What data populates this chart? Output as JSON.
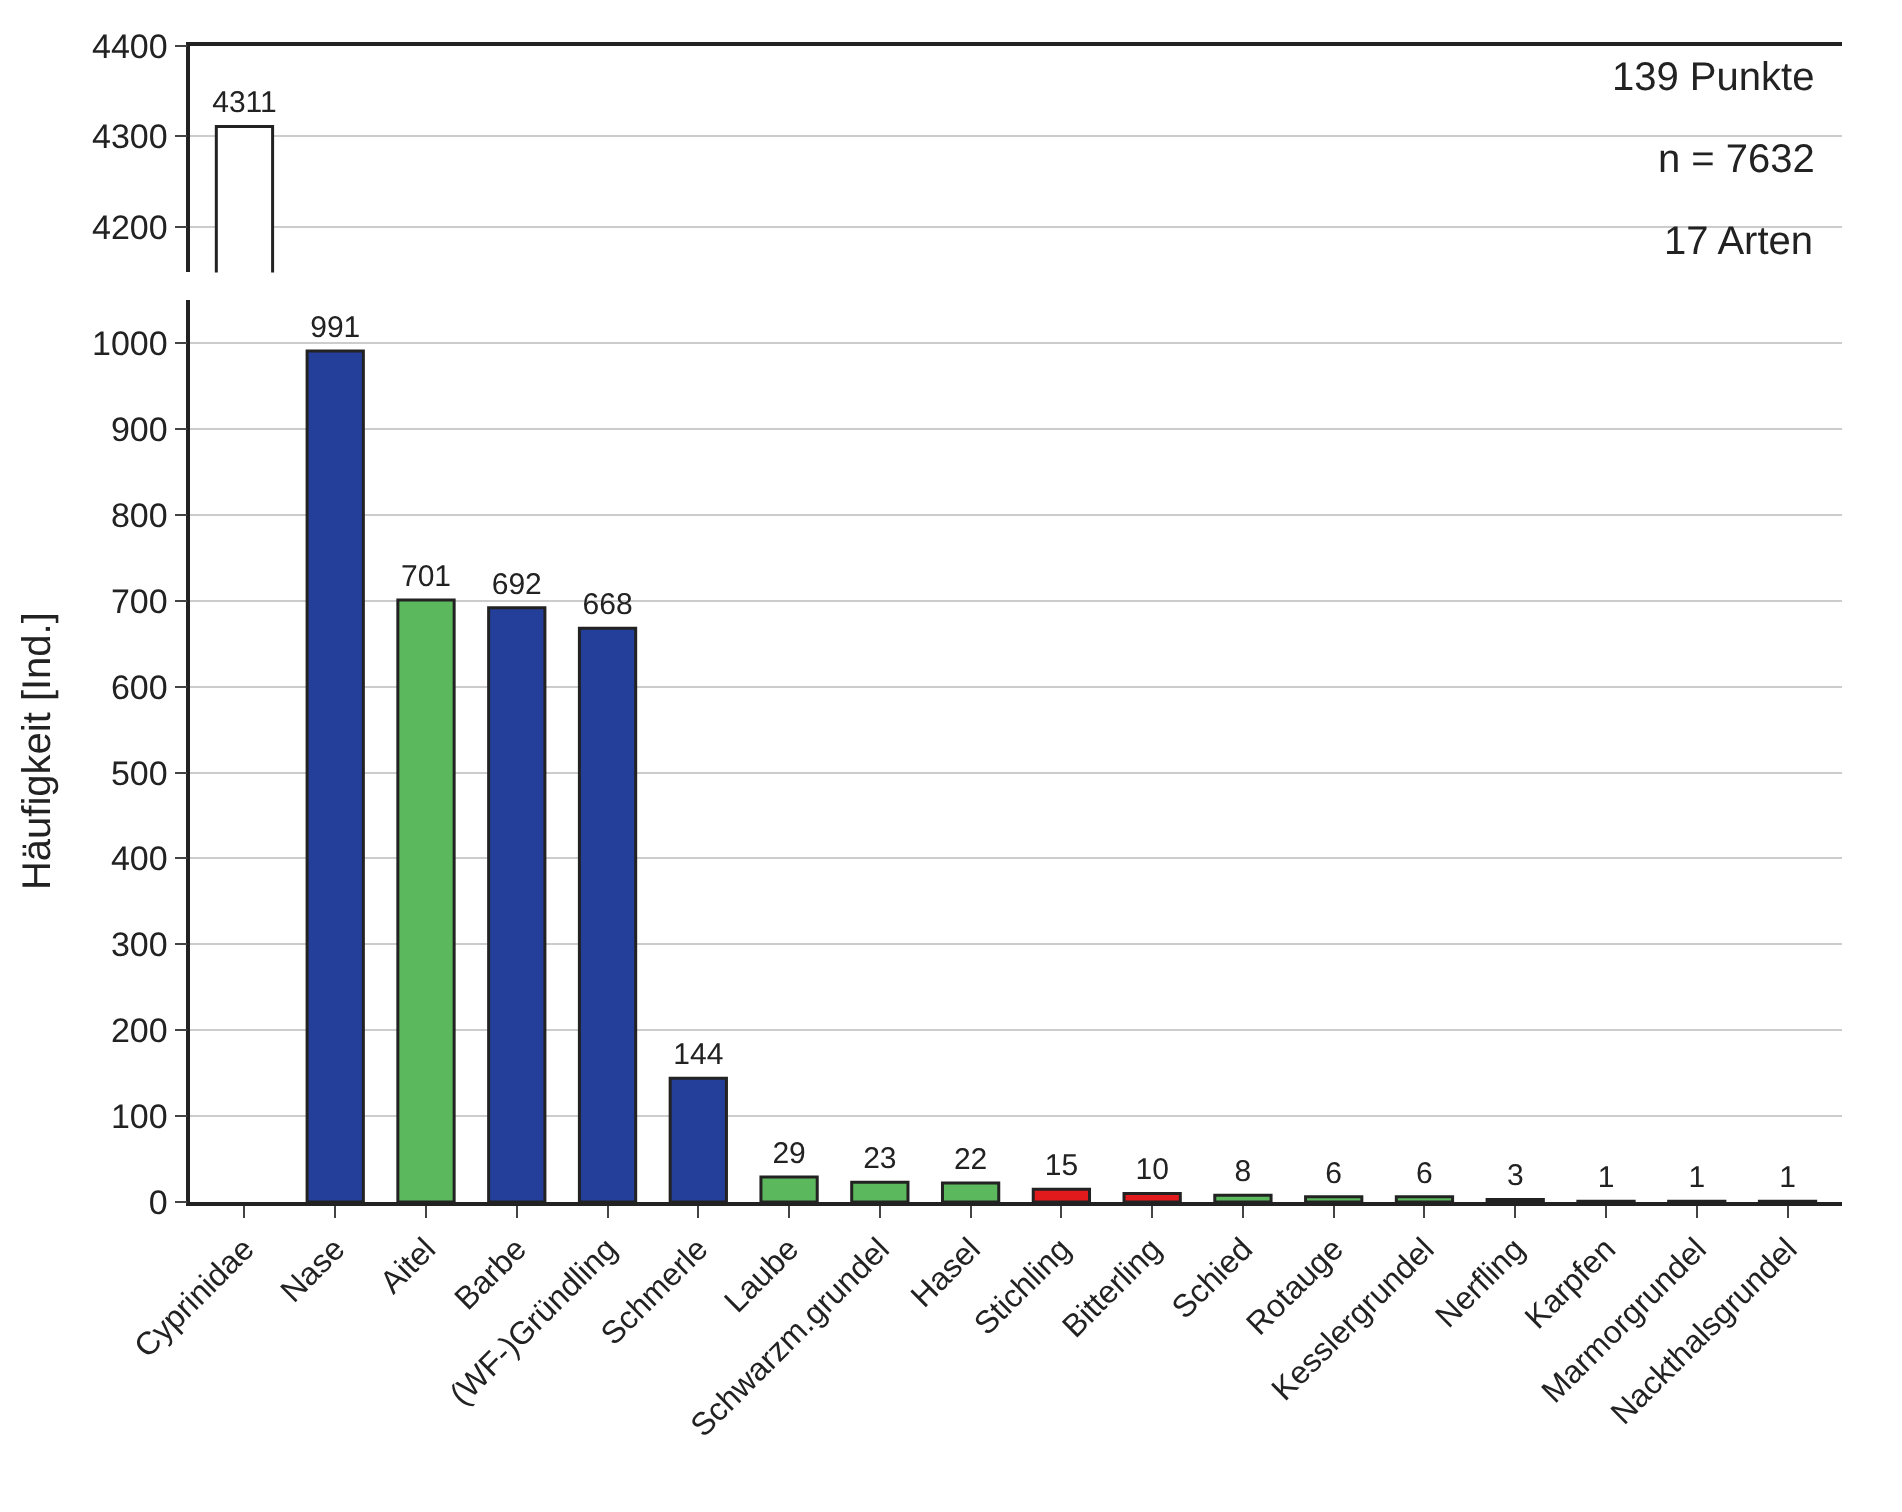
{
  "chart_data": [
    {
      "type": "bar",
      "categories": [
        null,
        null,
        null,
        null,
        null,
        null,
        null,
        null,
        null,
        null,
        null,
        null,
        null,
        null,
        null,
        null,
        null,
        null
      ],
      "values": [
        4311,
        null,
        null,
        null,
        null,
        null,
        null,
        null,
        null,
        null,
        null,
        null,
        null,
        null,
        null,
        null,
        null,
        null
      ],
      "value_labels": [
        "4311",
        null,
        null,
        null,
        null,
        null,
        null,
        null,
        null,
        null,
        null,
        null,
        null,
        null,
        null,
        null,
        null,
        null
      ],
      "colors": [
        "#ffffff",
        "#243f99",
        "#5cb85c",
        "#243f99",
        "#243f99",
        "#243f99",
        "#5cb85c",
        "#5cb85c",
        "#5cb85c",
        "#e31a1c",
        "#e31a1c",
        "#5cb85c",
        "#5cb85c",
        "#5cb85c",
        "#5cb85c",
        "#5cb85c",
        "#5cb85c",
        "#5cb85c"
      ],
      "ylim": [
        4150,
        4400
      ],
      "yticks": [
        4200,
        4300,
        4400
      ],
      "grid": "y",
      "legend": false,
      "tick_labels": "y",
      "annotations": [
        "139 Punkte",
        "n = 7632",
        "17 Arten"
      ]
    },
    {
      "type": "bar",
      "categories": [
        "Cyprinidae",
        "Nase",
        "Aitel",
        "Barbe",
        "(WF-)Gründling",
        "Schmerle",
        "Laube",
        "Schwarzm.grundel",
        "Hasel",
        "Stichling",
        "Bitterling",
        "Schied",
        "Rotauge",
        "Kesslergrundel",
        "Nerfling",
        "Karpfen",
        "Marmorgrundel",
        "Nackthalsgrundel"
      ],
      "values": [
        null,
        991,
        701,
        692,
        668,
        144,
        29,
        23,
        22,
        15,
        10,
        8,
        6,
        6,
        3,
        1,
        1,
        1
      ],
      "value_labels": [
        null,
        "991",
        "701",
        "692",
        "668",
        "144",
        "29",
        "23",
        "22",
        "15",
        "10",
        "8",
        "6",
        "6",
        "3",
        "1",
        "1",
        "1"
      ],
      "colors": [
        "#ffffff",
        "#243f99",
        "#5cb85c",
        "#243f99",
        "#243f99",
        "#243f99",
        "#5cb85c",
        "#5cb85c",
        "#5cb85c",
        "#e31a1c",
        "#e31a1c",
        "#5cb85c",
        "#5cb85c",
        "#5cb85c",
        "#5cb85c",
        "#5cb85c",
        "#5cb85c",
        "#5cb85c"
      ],
      "ylim": [
        0,
        1050
      ],
      "yticks": [
        0,
        100,
        200,
        300,
        400,
        500,
        600,
        700,
        800,
        900,
        1000
      ],
      "grid": "y",
      "legend": false,
      "ylabel": "Häufigkeit [Ind.]"
    }
  ]
}
